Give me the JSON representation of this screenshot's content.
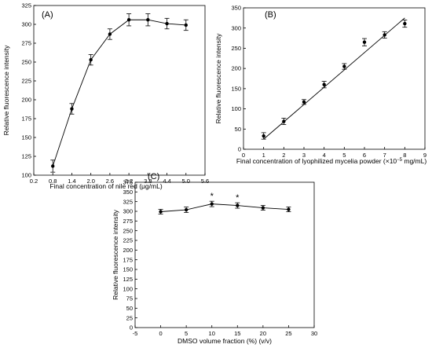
{
  "chart_data": [
    {
      "type": "line",
      "panel_label": "(A)",
      "xlabel": "Final concentration of nile red (μg/mL)",
      "ylabel": "Relative fluorescence intensity",
      "xlim": [
        0.2,
        5.6
      ],
      "ylim": [
        100,
        325
      ],
      "xticks": [
        "0.2",
        "0.8",
        "1.4",
        "2.0",
        "2.6",
        "3.2",
        "3.8",
        "4.4",
        "5.0",
        "5.6"
      ],
      "yticks": [
        "100",
        "125",
        "150",
        "175",
        "200",
        "225",
        "250",
        "275",
        "300",
        "325"
      ],
      "x": [
        0.8,
        1.4,
        2.0,
        2.6,
        3.2,
        3.8,
        4.4,
        5.0
      ],
      "y": [
        112,
        188,
        253,
        287,
        306,
        306,
        301,
        299
      ],
      "err": [
        8,
        7,
        7,
        7,
        8,
        8,
        7,
        7
      ],
      "fit": "connected"
    },
    {
      "type": "scatter",
      "panel_label": "(B)",
      "xlabel": "Final concentration of lyophilized mycelia powder (×10",
      "xlabel_sup": "−5",
      "xlabel_tail": " mg/mL)",
      "ylabel": "Relative fluorescence intensity",
      "xlim": [
        0,
        9
      ],
      "ylim": [
        0,
        350
      ],
      "xticks": [
        "0",
        "1",
        "2",
        "3",
        "4",
        "5",
        "6",
        "7",
        "8",
        "9"
      ],
      "yticks": [
        "0",
        "50",
        "100",
        "150",
        "200",
        "250",
        "300",
        "350"
      ],
      "x": [
        1,
        2,
        3,
        4,
        5,
        6,
        7,
        8
      ],
      "y": [
        33,
        69,
        117,
        160,
        205,
        265,
        283,
        311
      ],
      "err": [
        8,
        8,
        6,
        8,
        7,
        9,
        8,
        9
      ],
      "fit": "linear",
      "fit_line": {
        "x": [
          1,
          8
        ],
        "y": [
          25,
          325
        ]
      }
    },
    {
      "type": "line",
      "panel_label": "(C)",
      "xlabel": "DMSO volume fraction (%) (v/v)",
      "ylabel": "Relative fluorescence intensity",
      "xlim": [
        -5,
        30
      ],
      "ylim": [
        0,
        375
      ],
      "xticks": [
        "-5",
        "0",
        "5",
        "10",
        "15",
        "20",
        "25",
        "30"
      ],
      "yticks": [
        "0",
        "25",
        "50",
        "75",
        "100",
        "125",
        "150",
        "175",
        "200",
        "225",
        "250",
        "275",
        "300",
        "325",
        "350",
        "375"
      ],
      "x": [
        0,
        5,
        10,
        15,
        20,
        25
      ],
      "y": [
        299,
        304,
        319,
        315,
        309,
        305
      ],
      "err": [
        6,
        7,
        7,
        7,
        6,
        6
      ],
      "annotations": [
        {
          "x": 10,
          "text": "*"
        },
        {
          "x": 15,
          "text": "*"
        }
      ],
      "fit": "connected"
    }
  ]
}
